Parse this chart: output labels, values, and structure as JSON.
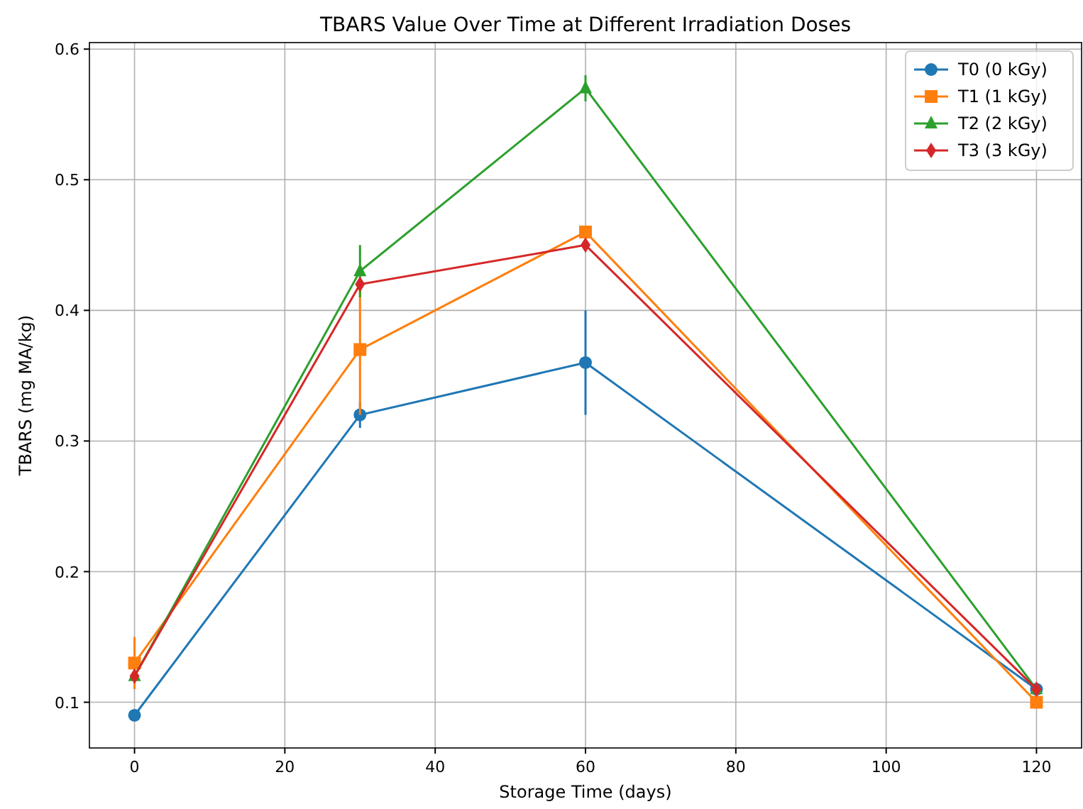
{
  "chart_data": {
    "type": "line",
    "title": "TBARS Value Over Time at Different Irradiation Doses",
    "xlabel": "Storage Time (days)",
    "ylabel": "TBARS (mg MA/kg)",
    "x": [
      0,
      30,
      60,
      120
    ],
    "series": [
      {
        "name": "T0 (0 kGy)",
        "color": "#1f77b4",
        "marker": "circle",
        "values": [
          0.09,
          0.32,
          0.36,
          0.11
        ],
        "errors": [
          null,
          0.01,
          0.04,
          null
        ]
      },
      {
        "name": "T1 (1 kGy)",
        "color": "#ff7f0e",
        "marker": "square",
        "values": [
          0.13,
          0.37,
          0.46,
          0.1
        ],
        "errors": [
          0.02,
          0.05,
          null,
          null
        ]
      },
      {
        "name": "T2 (2 kGy)",
        "color": "#2ca02c",
        "marker": "triangle",
        "values": [
          0.12,
          0.43,
          0.57,
          0.11
        ],
        "errors": [
          null,
          0.02,
          0.01,
          null
        ]
      },
      {
        "name": "T3 (3 kGy)",
        "color": "#d62728",
        "marker": "diamond",
        "values": [
          0.12,
          0.42,
          0.45,
          0.11
        ]
      }
    ],
    "xlim": [
      -6,
      126
    ],
    "xticks": [
      0,
      20,
      40,
      60,
      80,
      100,
      120
    ],
    "ylim": [
      0.065,
      0.605
    ],
    "yticks": [
      0.1,
      0.2,
      0.3,
      0.4,
      0.5,
      0.6
    ],
    "grid": true,
    "legend": "top right",
    "line_style": "solid"
  }
}
